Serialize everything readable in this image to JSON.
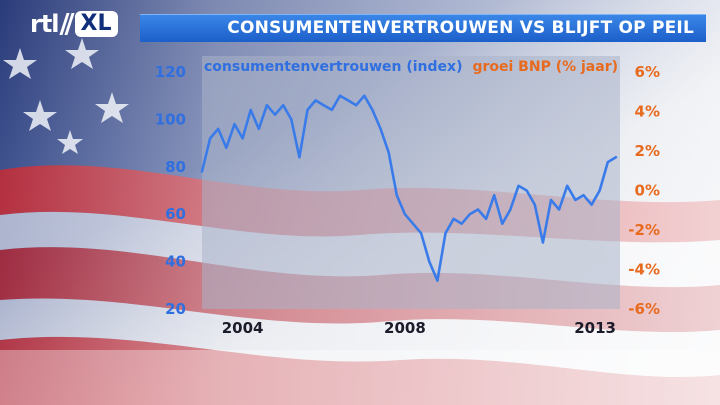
{
  "header": {
    "logo_rtl": "rtl",
    "logo_xl": "XL",
    "title": "CONSUMENTENVERTROUWEN VS BLIJFT OP PEIL"
  },
  "colors": {
    "header_blue": "#2b74dc",
    "consumer_line": "#3a7bea",
    "bnp_axis": "#e86a1f",
    "left_axis": "#2f6fe0"
  },
  "chart_data": {
    "type": "line",
    "series": [
      {
        "name": "consumentenvertrouwen (index)",
        "axis": "left",
        "x": [
          2003.0,
          2003.2,
          2003.4,
          2003.6,
          2003.8,
          2004.0,
          2004.2,
          2004.4,
          2004.6,
          2004.8,
          2005.0,
          2005.2,
          2005.4,
          2005.6,
          2005.8,
          2006.0,
          2006.2,
          2006.4,
          2006.6,
          2006.8,
          2007.0,
          2007.2,
          2007.4,
          2007.6,
          2007.8,
          2008.0,
          2008.2,
          2008.4,
          2008.6,
          2008.8,
          2009.0,
          2009.2,
          2009.4,
          2009.6,
          2009.8,
          2010.0,
          2010.2,
          2010.4,
          2010.6,
          2010.8,
          2011.0,
          2011.2,
          2011.4,
          2011.6,
          2011.8,
          2012.0,
          2012.2,
          2012.4,
          2012.6,
          2012.8,
          2013.0,
          2013.2
        ],
        "values": [
          78,
          92,
          96,
          88,
          98,
          92,
          104,
          96,
          106,
          102,
          106,
          100,
          84,
          104,
          108,
          106,
          104,
          110,
          108,
          106,
          110,
          104,
          96,
          86,
          68,
          60,
          56,
          52,
          40,
          32,
          52,
          58,
          56,
          60,
          62,
          58,
          68,
          56,
          62,
          72,
          70,
          64,
          48,
          66,
          62,
          72,
          66,
          68,
          64,
          70,
          82,
          84
        ]
      }
    ],
    "series_labels": [
      "consumentenvertrouwen (index)",
      "groei BNP (% jaar)"
    ],
    "x_ticks": [
      "2004",
      "2008",
      "2013"
    ],
    "x_tick_values": [
      2004,
      2008,
      2013
    ],
    "y_ticks_left": [
      "120",
      "100",
      "80",
      "60",
      "40",
      "20"
    ],
    "y_ticks_left_values": [
      120,
      100,
      80,
      60,
      40,
      20
    ],
    "y_ticks_right": [
      "6%",
      "4%",
      "2%",
      "0%",
      "-2%",
      "-4%",
      "-6%"
    ],
    "y_ticks_right_values": [
      6,
      4,
      2,
      0,
      -2,
      -4,
      -6
    ],
    "xlim": [
      2003.0,
      2013.3
    ],
    "ylim_left": [
      20,
      120
    ],
    "ylim_right": [
      -6,
      6
    ],
    "grid": false
  }
}
